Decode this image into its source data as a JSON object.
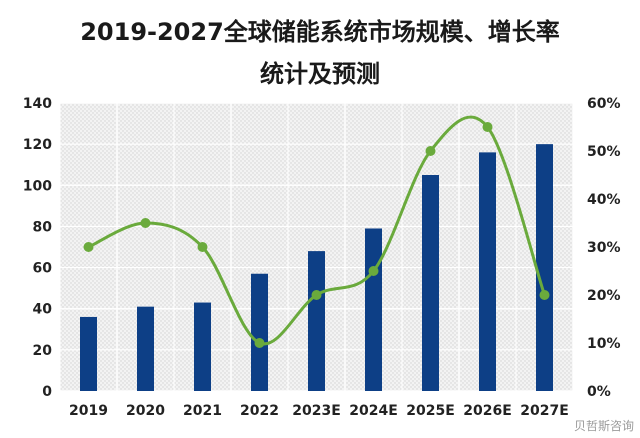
{
  "chart_data": {
    "type": "bar",
    "title_line1": "2019-2027全球储能系统市场规模、增长率",
    "title_line2": "统计及预测",
    "categories": [
      "2019",
      "2020",
      "2021",
      "2022",
      "2023E",
      "2024E",
      "2025E",
      "2026E",
      "2027E"
    ],
    "series": [
      {
        "type": "bar",
        "axis": "left",
        "color": "#0d3f86",
        "values": [
          36,
          41,
          43,
          57,
          68,
          79,
          105,
          116,
          120
        ]
      },
      {
        "type": "line",
        "axis": "right",
        "color": "#6aaa3c",
        "values": [
          30,
          35,
          30,
          10,
          20,
          25,
          50,
          55,
          20
        ]
      }
    ],
    "y_left": {
      "min": 0,
      "max": 140,
      "ticks": [
        "0",
        "20",
        "40",
        "60",
        "80",
        "100",
        "120",
        "140"
      ]
    },
    "y_right": {
      "min": 0,
      "max": 60,
      "ticks": [
        "0%",
        "10%",
        "20%",
        "30%",
        "40%",
        "50%",
        "60%"
      ]
    },
    "grid": true
  },
  "watermark": "贝哲斯咨询"
}
